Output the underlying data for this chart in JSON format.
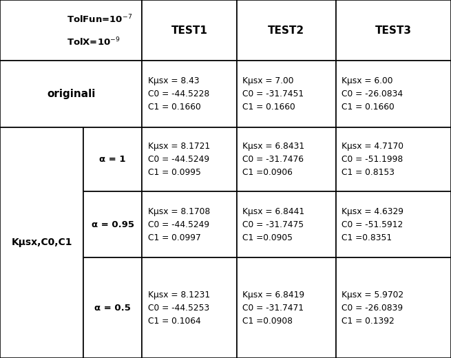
{
  "header_txt": "TolFun=10$^{-7}$\nTolX=10$^{-9}$",
  "test_headers": [
    "TEST1",
    "TEST2",
    "TEST3"
  ],
  "row_originali": {
    "label": "originali",
    "test1": "Kμsx = 8.43\nC0 = -44.5228\nC1 = 0.1660",
    "test2": "Kμsx = 7.00\nC0 = -31.7451\nC1 = 0.1660",
    "test3": "Kμsx = 6.00\nC0 = -26.0834\nC1 = 0.1660"
  },
  "row_group_label": "Kμsx,C0,C1",
  "sub_rows": [
    {
      "alpha": "α = 1",
      "test1": "Kμsx = 8.1721\nC0 = -44.5249\nC1 = 0.0995",
      "test2": "Kμsx = 6.8431\nC0 = -31.7476\nC1 =0.0906",
      "test3": "Kμsx = 4.7170\nC0 = -51.1998\nC1 = 0.8153"
    },
    {
      "alpha": "α = 0.95",
      "test1": "Kμsx = 8.1708\nC0 = -44.5249\nC1 = 0.0997",
      "test2": "Kμsx = 6.8441\nC0 = -31.7475\nC1 =0.0905",
      "test3": "Kμsx = 4.6329\nC0 = -51.5912\nC1 =0.8351"
    },
    {
      "alpha": "α = 0.5",
      "test1": "Kμsx = 8.1231\nC0 = -44.5253\nC1 = 0.1064",
      "test2": "Kμsx = 6.8419\nC0 = -31.7471\nC1 =0.0908",
      "test3": "Kμsx = 5.9702\nC0 = -26.0839\nC1 = 0.1392"
    }
  ],
  "background_color": "#ffffff",
  "line_color": "#000000",
  "text_color": "#000000",
  "figsize": [
    6.55,
    5.2
  ],
  "dpi": 100
}
